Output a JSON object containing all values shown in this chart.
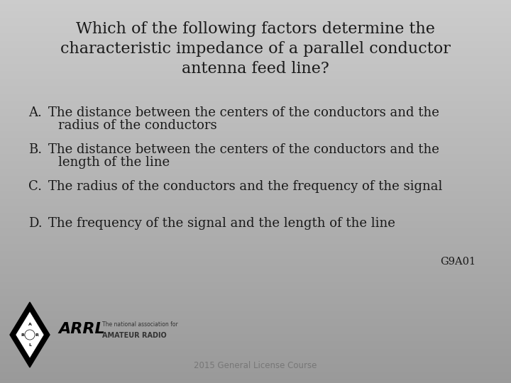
{
  "title_line1": "Which of the following factors determine the",
  "title_line2": "characteristic impedance of a parallel conductor",
  "title_line3": "antenna feed line?",
  "answers": [
    {
      "label": "A.",
      "line1": "The distance between the centers of the conductors and the",
      "line2": "   radius of the conductors"
    },
    {
      "label": "B.",
      "line1": "The distance between the centers of the conductors and the",
      "line2": "   length of the line"
    },
    {
      "label": "C.",
      "line1": "The radius of the conductors and the frequency of the signal",
      "line2": null
    },
    {
      "label": "D.",
      "line1": "The frequency of the signal and the length of the line",
      "line2": null
    }
  ],
  "question_code": "G9A01",
  "footer": "2015 General License Course",
  "text_color": "#1a1a1a",
  "footer_color": "#777777",
  "title_fontsize": 16,
  "answer_fontsize": 13,
  "code_fontsize": 10.5,
  "footer_fontsize": 8.5
}
